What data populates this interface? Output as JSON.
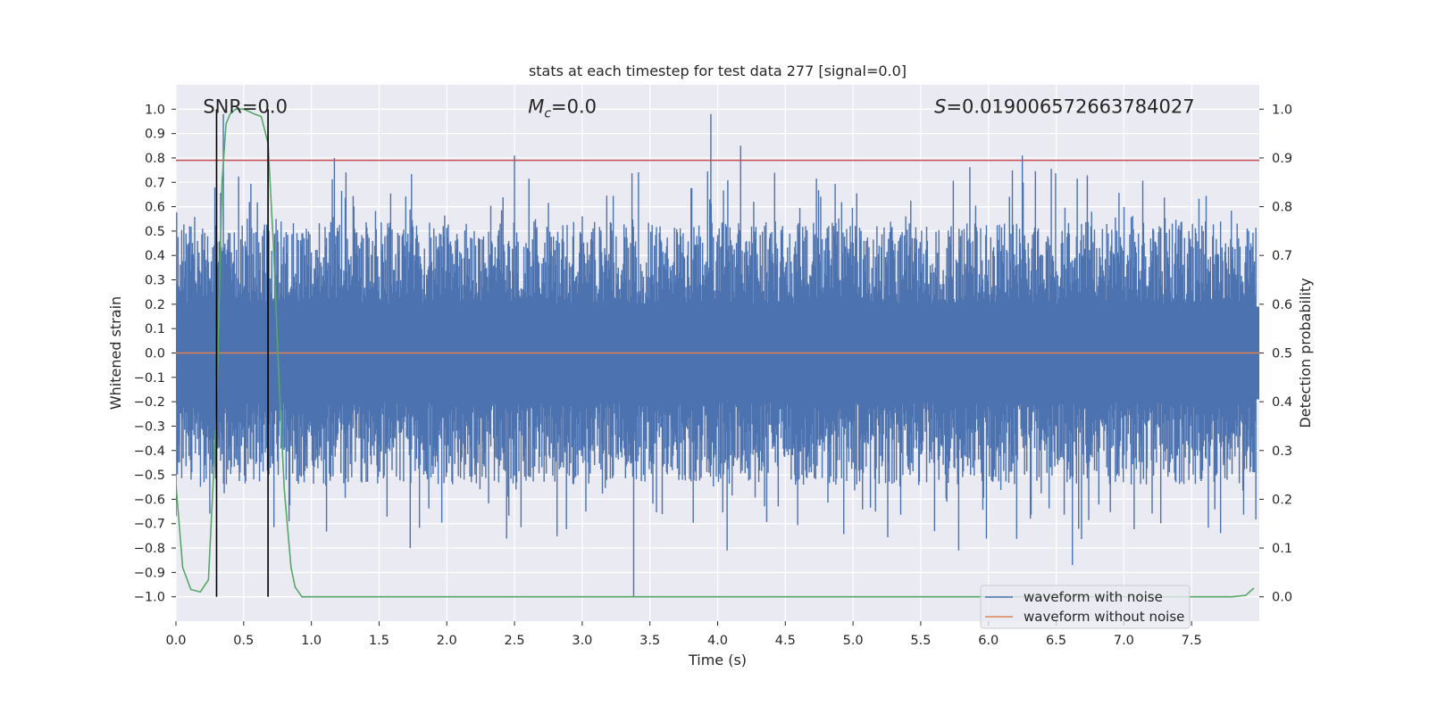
{
  "chart_data": {
    "type": "line",
    "title": "stats at each timestep for test data 277 [signal=0.0]",
    "xlabel": "Time (s)",
    "ylabel": "Whitened strain",
    "y2label": "Detection probability",
    "xlim": [
      0.0,
      8.0
    ],
    "ylim": [
      -1.1,
      1.1
    ],
    "y2lim": [
      -0.05,
      1.05
    ],
    "xticks": [
      0.0,
      0.5,
      1.0,
      1.5,
      2.0,
      2.5,
      3.0,
      3.5,
      4.0,
      4.5,
      5.0,
      5.5,
      6.0,
      6.5,
      7.0,
      7.5
    ],
    "xtick_labels": [
      "0.0",
      "0.5",
      "1.0",
      "1.5",
      "2.0",
      "2.5",
      "3.0",
      "3.5",
      "4.0",
      "4.5",
      "5.0",
      "5.5",
      "6.0",
      "6.5",
      "7.0",
      "7.5"
    ],
    "yticks": [
      1.0,
      0.9,
      0.8,
      0.7,
      0.6,
      0.5,
      0.4,
      0.3,
      0.2,
      0.1,
      0.0,
      -0.1,
      -0.2,
      -0.3,
      -0.4,
      -0.5,
      -0.6,
      -0.7,
      -0.8,
      -0.9,
      -1.0
    ],
    "ytick_labels": [
      "1.0",
      "0.9",
      "0.8",
      "0.7",
      "0.6",
      "0.5",
      "0.4",
      "0.3",
      "0.2",
      "0.1",
      "0.0",
      "−0.1",
      "−0.2",
      "−0.3",
      "−0.4",
      "−0.5",
      "−0.6",
      "−0.7",
      "−0.8",
      "−0.9",
      "−1.0"
    ],
    "y2ticks": [
      1.0,
      0.9,
      0.8,
      0.7,
      0.6,
      0.5,
      0.4,
      0.3,
      0.2,
      0.1,
      0.0
    ],
    "y2tick_labels": [
      "1.0",
      "0.9",
      "0.8",
      "0.7",
      "0.6",
      "0.5",
      "0.4",
      "0.3",
      "0.2",
      "0.1",
      "0.0"
    ],
    "annotations": {
      "snr": "SNR=0.0",
      "mc": "M",
      "mc_sub": "c",
      "mc_val": "=0.0",
      "s_sym": "S",
      "s_val": "=0.019006572663784027"
    },
    "series": [
      {
        "name": "waveform with noise",
        "color": "#4c72b0",
        "noise_envelope": {
          "positive_typical": 0.45,
          "negative_typical": -0.45,
          "max": 1.0,
          "min": -1.0
        }
      },
      {
        "name": "waveform without noise",
        "color": "#dd8452",
        "values_constant": 0.0
      },
      {
        "name": "detection probability",
        "color": "#55a868",
        "axis": "right",
        "x": [
          0.0,
          0.05,
          0.11,
          0.18,
          0.24,
          0.3,
          0.34,
          0.37,
          0.4,
          0.44,
          0.5,
          0.58,
          0.63,
          0.68,
          0.72,
          0.76,
          0.8,
          0.85,
          0.88,
          0.93,
          1.0,
          1.5,
          2.0,
          3.0,
          4.0,
          5.0,
          6.0,
          7.0,
          7.5,
          7.8,
          7.9,
          7.96
        ],
        "values": [
          0.23,
          0.06,
          0.015,
          0.01,
          0.035,
          0.38,
          0.85,
          0.97,
          0.99,
          1.0,
          1.0,
          0.99,
          0.985,
          0.93,
          0.72,
          0.45,
          0.22,
          0.06,
          0.02,
          0.0,
          0.0,
          0.0,
          0.0,
          0.0,
          0.0,
          0.0,
          0.0,
          0.0,
          0.0,
          0.0,
          0.003,
          0.018
        ]
      }
    ],
    "threshold_line": {
      "value": 0.79,
      "axis": "left",
      "color": "#c44e52"
    },
    "vertical_lines": [
      {
        "x": 0.3,
        "color": "#000000"
      },
      {
        "x": 0.68,
        "color": "#000000"
      }
    ],
    "legend": {
      "position": "lower-right",
      "entries": [
        "waveform with noise",
        "waveform without noise"
      ]
    }
  }
}
